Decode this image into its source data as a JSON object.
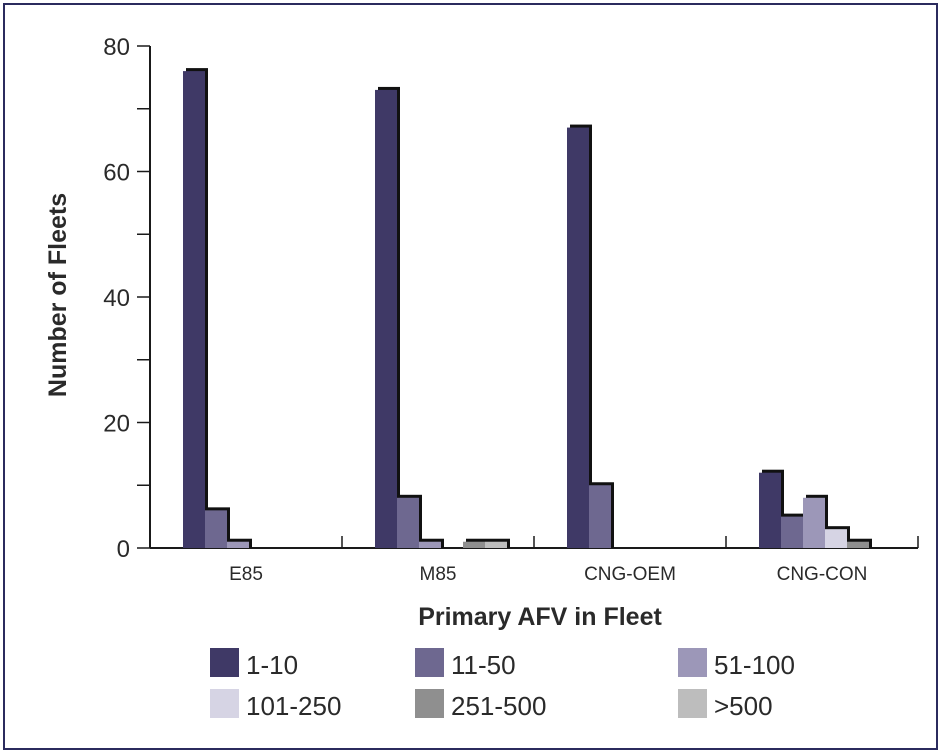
{
  "chart_data": {
    "type": "bar",
    "title": "",
    "xlabel": "Primary AFV in Fleet",
    "ylabel": "Number of Fleets",
    "categories": [
      "E85",
      "M85",
      "CNG-OEM",
      "CNG-CON"
    ],
    "ylim": [
      0,
      80
    ],
    "yticks": [
      0,
      20,
      40,
      60,
      80
    ],
    "grid": false,
    "legend_position": "bottom",
    "series": [
      {
        "name": "1-10",
        "color": "#3f3966",
        "values": [
          76,
          73,
          67,
          12
        ]
      },
      {
        "name": "11-50",
        "color": "#6e6890",
        "values": [
          6,
          8,
          10,
          5
        ]
      },
      {
        "name": "51-100",
        "color": "#9c97b8",
        "values": [
          1,
          1,
          0,
          8
        ]
      },
      {
        "name": "101-250",
        "color": "#d6d4e4",
        "values": [
          0,
          0,
          0,
          3
        ]
      },
      {
        "name": "251-500",
        "color": "#8f8f8f",
        "values": [
          0,
          1,
          0,
          1
        ]
      },
      {
        "name": ">500",
        "color": "#bdbdbd",
        "values": [
          0,
          1,
          0,
          0
        ]
      }
    ]
  }
}
